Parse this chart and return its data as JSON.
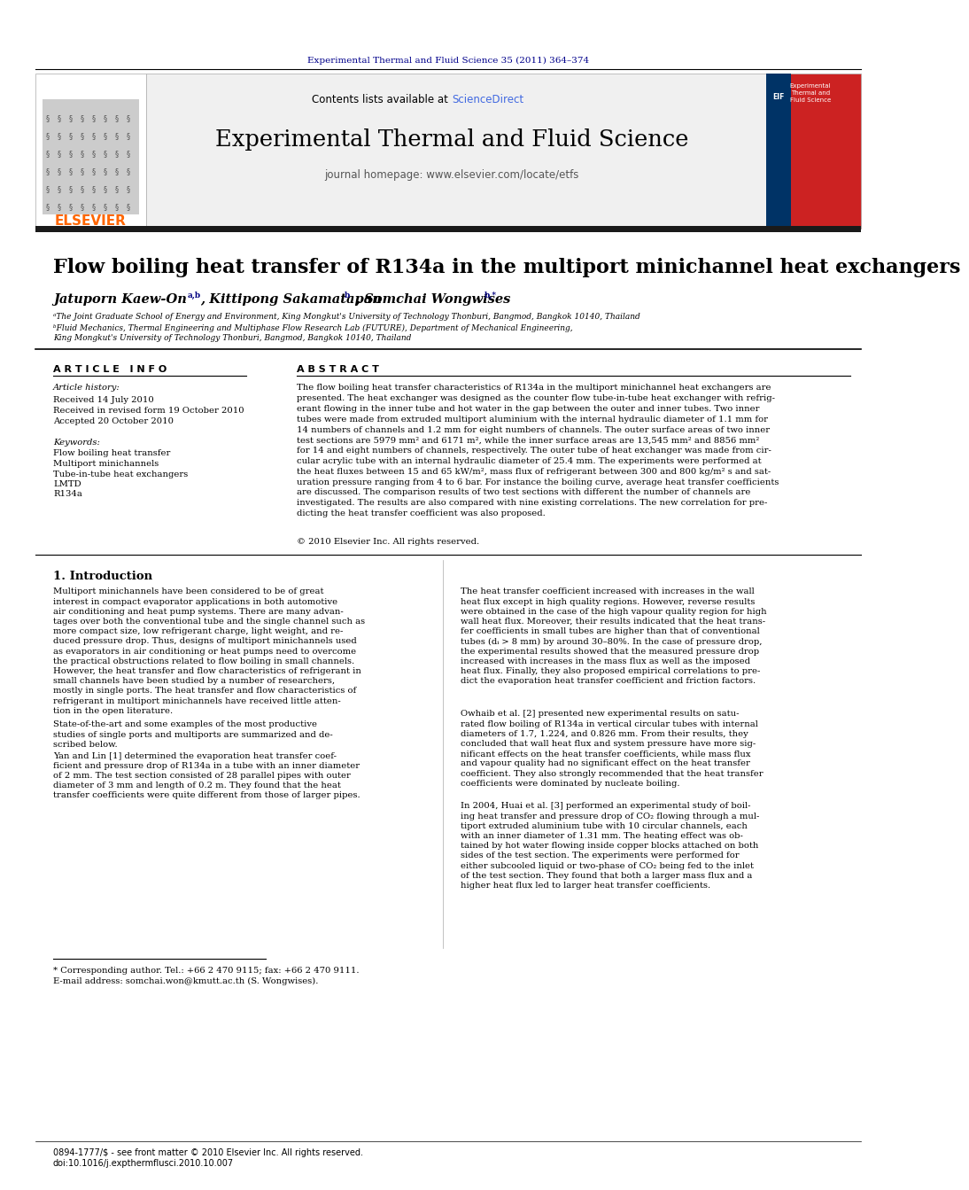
{
  "page_bg": "#ffffff",
  "top_journal_ref": "Experimental Thermal and Fluid Science 35 (2011) 364–374",
  "top_journal_color": "#00008B",
  "journal_title": "Experimental Thermal and Fluid Science",
  "journal_homepage": "journal homepage: www.elsevier.com/locate/etfs",
  "contents_text": "Contents lists available at ",
  "science_direct": "ScienceDirect",
  "paper_title": "Flow boiling heat transfer of R134a in the multiport minichannel heat exchangers",
  "authors": "Jatuporn Kaew-On",
  "authors_sup1": "a,b",
  "authors2": ", Kittipong Sakamatapan",
  "authors_sup2": "b",
  "authors3": ", Somchai Wongwises",
  "authors_sup3": "b,*",
  "affil1": "ᵃThe Joint Graduate School of Energy and Environment, King Mongkut's University of Technology Thonburi, Bangmod, Bangkok 10140, Thailand",
  "affil2": "ᵇFluid Mechanics, Thermal Engineering and Multiphase Flow Research Lab (FUTURE), Department of Mechanical Engineering,",
  "affil3": "King Mongkut's University of Technology Thonburi, Bangmod, Bangkok 10140, Thailand",
  "article_info_header": "A R T I C L E   I N F O",
  "abstract_header": "A B S T R A C T",
  "article_history_label": "Article history:",
  "received1": "Received 14 July 2010",
  "received2": "Received in revised form 19 October 2010",
  "accepted": "Accepted 20 October 2010",
  "keywords_label": "Keywords:",
  "keyword1": "Flow boiling heat transfer",
  "keyword2": "Multiport minichannels",
  "keyword3": "Tube-in-tube heat exchangers",
  "keyword4": "LMTD",
  "keyword5": "R134a",
  "abstract_text": "The flow boiling heat transfer characteristics of R134a in the multiport minichannel heat exchangers are\npresented. The heat exchanger was designed as the counter flow tube-in-tube heat exchanger with refrig-\nerant flowing in the inner tube and hot water in the gap between the outer and inner tubes. Two inner\ntubes were made from extruded multiport aluminium with the internal hydraulic diameter of 1.1 mm for\n14 numbers of channels and 1.2 mm for eight numbers of channels. The outer surface areas of two inner\ntest sections are 5979 mm² and 6171 m², while the inner surface areas are 13,545 mm² and 8856 mm²\nfor 14 and eight numbers of channels, respectively. The outer tube of heat exchanger was made from cir-\ncular acrylic tube with an internal hydraulic diameter of 25.4 mm. The experiments were performed at\nthe heat fluxes between 15 and 65 kW/m², mass flux of refrigerant between 300 and 800 kg/m² s and sat-\nuration pressure ranging from 4 to 6 bar. For instance the boiling curve, average heat transfer coefficients\nare discussed. The comparison results of two test sections with different the number of channels are\ninvestigated. The results are also compared with nine existing correlations. The new correlation for pre-\ndicting the heat transfer coefficient was also proposed.",
  "copyright": "© 2010 Elsevier Inc. All rights reserved.",
  "section1_title": "1. Introduction",
  "intro_col1_p1": "Multiport minichannels have been considered to be of great\ninterest in compact evaporator applications in both automotive\nair conditioning and heat pump systems. There are many advan-\ntages over both the conventional tube and the single channel such as\nmore compact size, low refrigerant charge, light weight, and re-\nduced pressure drop. Thus, designs of multiport minichannels used\nas evaporators in air conditioning or heat pumps need to overcome\nthe practical obstructions related to flow boiling in small channels.\nHowever, the heat transfer and flow characteristics of refrigerant in\nsmall channels have been studied by a number of researchers,\nmostly in single ports. The heat transfer and flow characteristics of\nrefrigerant in multiport minichannels have received little atten-\ntion in the open literature.",
  "intro_col1_p2": "State-of-the-art and some examples of the most productive\nstudies of single ports and multiports are summarized and de-\nscribed below.",
  "intro_col1_p3": "Yan and Lin [1] determined the evaporation heat transfer coef-\nficient and pressure drop of R134a in a tube with an inner diameter\nof 2 mm. The test section consisted of 28 parallel pipes with outer\ndiameter of 3 mm and length of 0.2 m. They found that the heat\ntransfer coefficients were quite different from those of larger pipes.",
  "intro_col2_p1": "The heat transfer coefficient increased with increases in the wall\nheat flux except in high quality regions. However, reverse results\nwere obtained in the case of the high vapour quality region for high\nwall heat flux. Moreover, their results indicated that the heat trans-\nfer coefficients in small tubes are higher than that of conventional\ntubes (dᵢ > 8 mm) by around 30–80%. In the case of pressure drop,\nthe experimental results showed that the measured pressure drop\nincreased with increases in the mass flux as well as the imposed\nheat flux. Finally, they also proposed empirical correlations to pre-\ndict the evaporation heat transfer coefficient and friction factors.",
  "intro_col2_p2": "Owhaib et al. [2] presented new experimental results on satu-\nrated flow boiling of R134a in vertical circular tubes with internal\ndiameters of 1.7, 1.224, and 0.826 mm. From their results, they\nconcluded that wall heat flux and system pressure have more sig-\nnificant effects on the heat transfer coefficients, while mass flux\nand vapour quality had no significant effect on the heat transfer\ncoefficient. They also strongly recommended that the heat transfer\ncoefficients were dominated by nucleate boiling.",
  "intro_col2_p3": "In 2004, Huai et al. [3] performed an experimental study of boil-\ning heat transfer and pressure drop of CO₂ flowing through a mul-\ntiport extruded aluminium tube with 10 circular channels, each\nwith an inner diameter of 1.31 mm. The heating effect was ob-\ntained by hot water flowing inside copper blocks attached on both\nsides of the test section. The experiments were performed for\neither subcooled liquid or two-phase of CO₂ being fed to the inlet\nof the test section. They found that both a larger mass flux and a\nhigher heat flux led to larger heat transfer coefficients.",
  "footnote1": "* Corresponding author. Tel.: +66 2 470 9115; fax: +66 2 470 9111.",
  "footnote2": "E-mail address: somchai.won@kmutt.ac.th (S. Wongwises).",
  "footer1": "0894-1777/$ - see front matter © 2010 Elsevier Inc. All rights reserved.",
  "footer2": "doi:10.1016/j.expthermflusci.2010.10.007",
  "header_bg": "#f0f0f0",
  "black_bar_color": "#1a1a1a",
  "elsevier_color": "#FF6600",
  "sciencedirect_color": "#4169E1"
}
